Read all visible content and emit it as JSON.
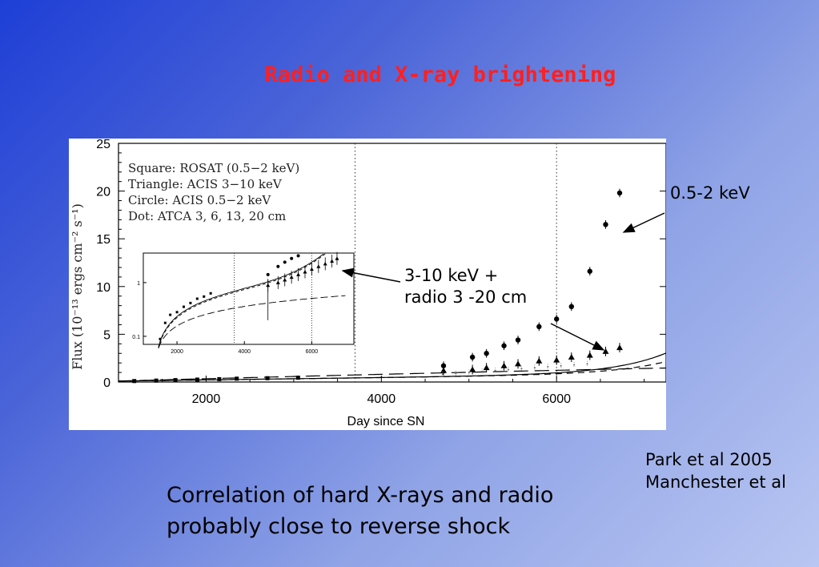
{
  "slide": {
    "title": "Radio and X-ray brightening",
    "callout_a": "0.5-2 keV",
    "callout_b_line1": "3-10 keV +",
    "callout_b_line2": "radio 3 -20 cm",
    "refs_line1": "Park et al 2005",
    "refs_line2": "Manchester et al",
    "caption_line1": "Correlation of hard X-rays and radio",
    "caption_line2": "probably close to reverse shock"
  },
  "chart_data": {
    "type": "scatter",
    "xlabel": "Day since SN",
    "ylabel": "Flux (10⁻¹³ ergs cm⁻² s⁻¹)",
    "xlim": [
      1000,
      7250
    ],
    "ylim": [
      0,
      25
    ],
    "x_ticks": [
      2000,
      4000,
      6000
    ],
    "y_ticks": [
      0,
      5,
      10,
      15,
      20,
      25
    ],
    "vertical_markers": [
      3700,
      6000
    ],
    "legend": {
      "position": "top-left",
      "entries": [
        "Square: ROSAT (0.5−2 keV)",
        "Triangle: ACIS 3−10 keV",
        "Circle: ACIS 0.5−2 keV",
        "Dot: ATCA 3, 6, 13, 20 cm"
      ]
    },
    "series": [
      {
        "name": "Square: ROSAT (0.5−2 keV)",
        "marker": "square",
        "x": [
          1180,
          1430,
          1650,
          1900,
          2150,
          2350,
          2700,
          3050
        ],
        "y": [
          0.1,
          0.15,
          0.2,
          0.25,
          0.3,
          0.35,
          0.4,
          0.45
        ]
      },
      {
        "name": "Circle: ACIS 0.5−2 keV",
        "marker": "circle",
        "x": [
          4710,
          5040,
          5200,
          5400,
          5560,
          5800,
          6000,
          6170,
          6380,
          6560,
          6720
        ],
        "y": [
          1.7,
          2.6,
          3.0,
          3.8,
          4.4,
          5.8,
          6.6,
          7.9,
          11.6,
          16.5,
          19.8
        ]
      },
      {
        "name": "Triangle: ACIS 3−10 keV",
        "marker": "triangle",
        "x": [
          4710,
          5040,
          5200,
          5400,
          5560,
          5800,
          6000,
          6170,
          6380,
          6560,
          6720
        ],
        "y": [
          1.2,
          1.3,
          1.5,
          1.7,
          1.9,
          2.2,
          2.3,
          2.6,
          2.8,
          3.2,
          3.6
        ]
      },
      {
        "name": "Dot: ATCA 3, 6, 13, 20 cm",
        "marker": "dot",
        "x": [
          4700,
          4850,
          5000,
          5150,
          5300,
          5450,
          5600,
          5750,
          5900,
          6050,
          6200,
          6350
        ],
        "y": [
          0.8,
          0.9,
          1.0,
          1.1,
          1.2,
          1.3,
          1.4,
          1.5,
          1.6,
          1.7,
          1.8,
          1.9
        ]
      }
    ],
    "inset": {
      "x_ticks": [
        2000,
        4000,
        6000
      ],
      "y_ticks": [
        "0.1",
        "1"
      ]
    }
  }
}
